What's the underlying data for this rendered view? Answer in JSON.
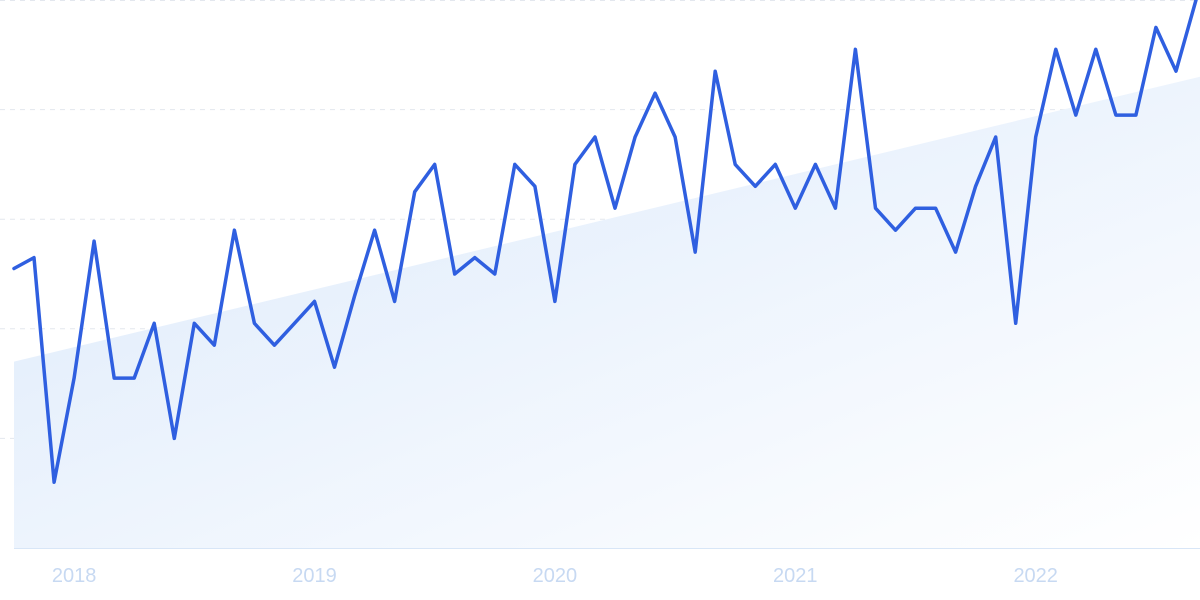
{
  "chart_data": {
    "type": "line",
    "title": "",
    "xlabel": "",
    "ylabel": "",
    "x_tick_labels": [
      "2018",
      "2019",
      "2020",
      "2021",
      "2022"
    ],
    "x_start": "2017-10",
    "x_step": "month",
    "ylim": [
      0,
      100
    ],
    "grid": true,
    "legend": "none",
    "series": [
      {
        "values": [
          51,
          53,
          12,
          31,
          56,
          31,
          31,
          41,
          20,
          41,
          37,
          58,
          41,
          37,
          41,
          45,
          33,
          46,
          58,
          45,
          65,
          70,
          50,
          53,
          50,
          70,
          66,
          45,
          70,
          75,
          62,
          75,
          83,
          75,
          54,
          87,
          70,
          66,
          70,
          62,
          70,
          62,
          91,
          62,
          58,
          62,
          62,
          54,
          66,
          75,
          41,
          75,
          91,
          79,
          91,
          79,
          79,
          95,
          87,
          100
        ]
      }
    ],
    "trend": {
      "start": 34,
      "end": 86
    },
    "colors": {
      "line": "#2f5fe0",
      "area_top": "#dbe9fb",
      "area_bottom": "#ffffff",
      "grid": "#e3e7ee",
      "axis": "#d8e6f7",
      "tick_label": "#c7d9f2"
    }
  }
}
